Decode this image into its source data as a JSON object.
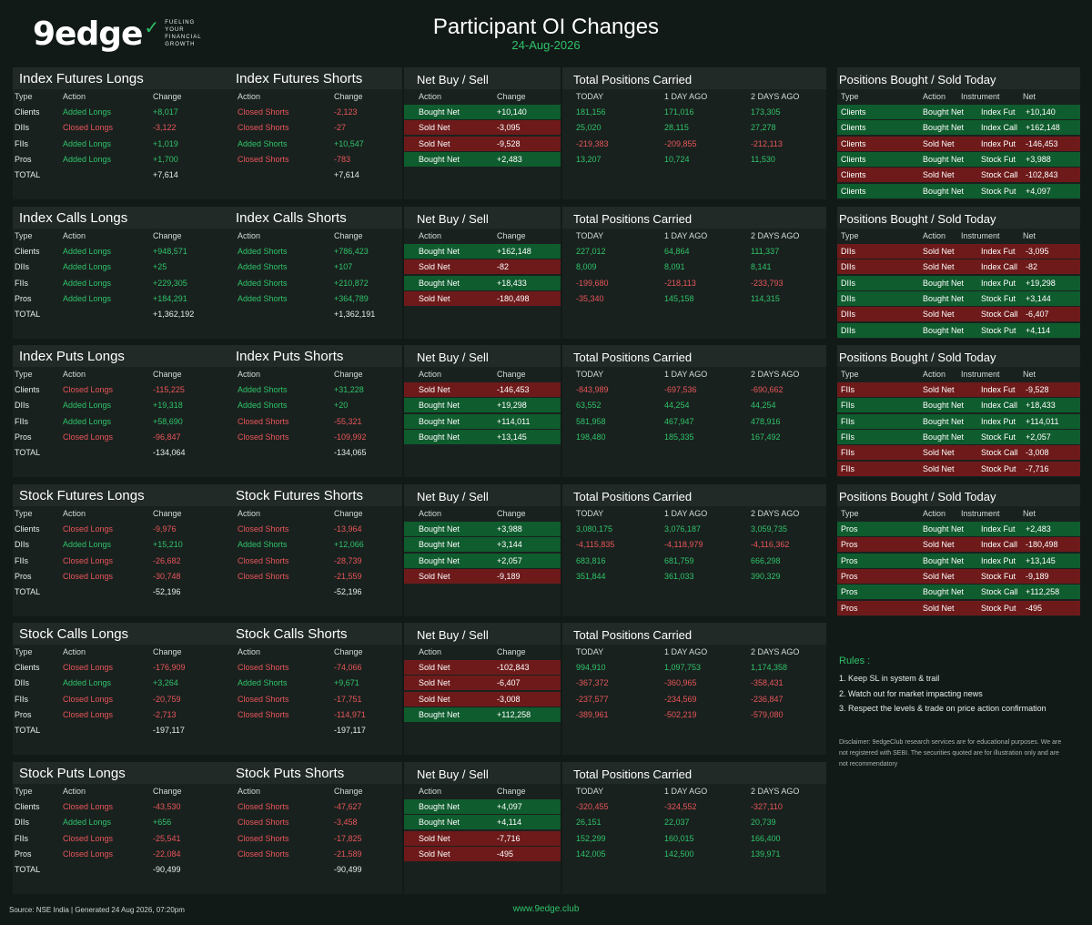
{
  "header": {
    "logo_text": "9edge",
    "tagline": [
      "FUELING",
      "YOUR",
      "FINANCIAL",
      "GROWTH"
    ],
    "title": "Participant OI Changes",
    "date": "24-Aug-2026"
  },
  "labels": {
    "type": "Type",
    "action": "Action",
    "change": "Change",
    "net_title": "Net Buy / Sell",
    "pos_title": "Total Positions Carried",
    "today": "TODAY",
    "day1": "1 DAY AGO",
    "day2": "2 DAYS AGO",
    "total": "TOTAL",
    "bs_title": "Positions Bought / Sold Today",
    "instrument": "Instrument",
    "net": "Net"
  },
  "colors": {
    "bg": "#121a17",
    "green": "#2fc26a",
    "red": "#e8555a",
    "buy_bg": "#0f5c2e",
    "sell_bg": "#6e1a1a"
  },
  "sections": [
    {
      "longs_title": "Index Futures Longs",
      "shorts_title": "Index Futures Shorts",
      "rows": [
        {
          "type": "Clients",
          "l_action": "Added Longs",
          "l_change": "+8,017",
          "s_action": "Closed Shorts",
          "s_change": "-2,123",
          "net_action": "Bought Net",
          "net_change": "+10,140",
          "today": "181,156",
          "d1": "171,016",
          "d2": "173,305"
        },
        {
          "type": "DIIs",
          "l_action": "Closed Longs",
          "l_change": "-3,122",
          "s_action": "Closed Shorts",
          "s_change": "-27",
          "net_action": "Sold Net",
          "net_change": "-3,095",
          "today": "25,020",
          "d1": "28,115",
          "d2": "27,278"
        },
        {
          "type": "FIIs",
          "l_action": "Added Longs",
          "l_change": "+1,019",
          "s_action": "Added Shorts",
          "s_change": "+10,547",
          "net_action": "Sold Net",
          "net_change": "-9,528",
          "today": "-219,383",
          "d1": "-209,855",
          "d2": "-212,113"
        },
        {
          "type": "Pros",
          "l_action": "Added Longs",
          "l_change": "+1,700",
          "s_action": "Closed Shorts",
          "s_change": "-783",
          "net_action": "Bought Net",
          "net_change": "+2,483",
          "today": "13,207",
          "d1": "10,724",
          "d2": "11,530"
        }
      ],
      "l_total": "+7,614",
      "s_total": "+7,614"
    },
    {
      "longs_title": "Index Calls Longs",
      "shorts_title": "Index Calls Shorts",
      "rows": [
        {
          "type": "Clients",
          "l_action": "Added Longs",
          "l_change": "+948,571",
          "s_action": "Added Shorts",
          "s_change": "+786,423",
          "net_action": "Bought Net",
          "net_change": "+162,148",
          "today": "227,012",
          "d1": "64,864",
          "d2": "111,337"
        },
        {
          "type": "DIIs",
          "l_action": "Added Longs",
          "l_change": "+25",
          "s_action": "Added Shorts",
          "s_change": "+107",
          "net_action": "Sold Net",
          "net_change": "-82",
          "today": "8,009",
          "d1": "8,091",
          "d2": "8,141"
        },
        {
          "type": "FIIs",
          "l_action": "Added Longs",
          "l_change": "+229,305",
          "s_action": "Added Shorts",
          "s_change": "+210,872",
          "net_action": "Bought Net",
          "net_change": "+18,433",
          "today": "-199,680",
          "d1": "-218,113",
          "d2": "-233,793"
        },
        {
          "type": "Pros",
          "l_action": "Added Longs",
          "l_change": "+184,291",
          "s_action": "Added Shorts",
          "s_change": "+364,789",
          "net_action": "Sold Net",
          "net_change": "-180,498",
          "today": "-35,340",
          "d1": "145,158",
          "d2": "114,315"
        }
      ],
      "l_total": "+1,362,192",
      "s_total": "+1,362,191"
    },
    {
      "longs_title": "Index Puts Longs",
      "shorts_title": "Index Puts Shorts",
      "rows": [
        {
          "type": "Clients",
          "l_action": "Closed Longs",
          "l_change": "-115,225",
          "s_action": "Added Shorts",
          "s_change": "+31,228",
          "net_action": "Sold Net",
          "net_change": "-146,453",
          "today": "-843,989",
          "d1": "-697,536",
          "d2": "-690,662"
        },
        {
          "type": "DIIs",
          "l_action": "Added Longs",
          "l_change": "+19,318",
          "s_action": "Added Shorts",
          "s_change": "+20",
          "net_action": "Bought Net",
          "net_change": "+19,298",
          "today": "63,552",
          "d1": "44,254",
          "d2": "44,254"
        },
        {
          "type": "FIIs",
          "l_action": "Added Longs",
          "l_change": "+58,690",
          "s_action": "Closed Shorts",
          "s_change": "-55,321",
          "net_action": "Bought Net",
          "net_change": "+114,011",
          "today": "581,958",
          "d1": "467,947",
          "d2": "478,916"
        },
        {
          "type": "Pros",
          "l_action": "Closed Longs",
          "l_change": "-96,847",
          "s_action": "Closed Shorts",
          "s_change": "-109,992",
          "net_action": "Bought Net",
          "net_change": "+13,145",
          "today": "198,480",
          "d1": "185,335",
          "d2": "167,492"
        }
      ],
      "l_total": "-134,064",
      "s_total": "-134,065"
    },
    {
      "longs_title": "Stock Futures Longs",
      "shorts_title": "Stock Futures Shorts",
      "rows": [
        {
          "type": "Clients",
          "l_action": "Closed Longs",
          "l_change": "-9,976",
          "s_action": "Closed Shorts",
          "s_change": "-13,964",
          "net_action": "Bought Net",
          "net_change": "+3,988",
          "today": "3,080,175",
          "d1": "3,076,187",
          "d2": "3,059,735"
        },
        {
          "type": "DIIs",
          "l_action": "Added Longs",
          "l_change": "+15,210",
          "s_action": "Added Shorts",
          "s_change": "+12,066",
          "net_action": "Bought Net",
          "net_change": "+3,144",
          "today": "-4,115,835",
          "d1": "-4,118,979",
          "d2": "-4,116,362"
        },
        {
          "type": "FIIs",
          "l_action": "Closed Longs",
          "l_change": "-26,682",
          "s_action": "Closed Shorts",
          "s_change": "-28,739",
          "net_action": "Bought Net",
          "net_change": "+2,057",
          "today": "683,816",
          "d1": "681,759",
          "d2": "666,298"
        },
        {
          "type": "Pros",
          "l_action": "Closed Longs",
          "l_change": "-30,748",
          "s_action": "Closed Shorts",
          "s_change": "-21,559",
          "net_action": "Sold Net",
          "net_change": "-9,189",
          "today": "351,844",
          "d1": "361,033",
          "d2": "390,329"
        }
      ],
      "l_total": "-52,196",
      "s_total": "-52,196"
    },
    {
      "longs_title": "Stock Calls Longs",
      "shorts_title": "Stock Calls Shorts",
      "rows": [
        {
          "type": "Clients",
          "l_action": "Closed Longs",
          "l_change": "-176,909",
          "s_action": "Closed Shorts",
          "s_change": "-74,066",
          "net_action": "Sold Net",
          "net_change": "-102,843",
          "today": "994,910",
          "d1": "1,097,753",
          "d2": "1,174,358"
        },
        {
          "type": "DIIs",
          "l_action": "Added Longs",
          "l_change": "+3,264",
          "s_action": "Added Shorts",
          "s_change": "+9,671",
          "net_action": "Sold Net",
          "net_change": "-6,407",
          "today": "-367,372",
          "d1": "-360,965",
          "d2": "-358,431"
        },
        {
          "type": "FIIs",
          "l_action": "Closed Longs",
          "l_change": "-20,759",
          "s_action": "Closed Shorts",
          "s_change": "-17,751",
          "net_action": "Sold Net",
          "net_change": "-3,008",
          "today": "-237,577",
          "d1": "-234,569",
          "d2": "-236,847"
        },
        {
          "type": "Pros",
          "l_action": "Closed Longs",
          "l_change": "-2,713",
          "s_action": "Closed Shorts",
          "s_change": "-114,971",
          "net_action": "Bought Net",
          "net_change": "+112,258",
          "today": "-389,961",
          "d1": "-502,219",
          "d2": "-579,080"
        }
      ],
      "l_total": "-197,117",
      "s_total": "-197,117"
    },
    {
      "longs_title": "Stock Puts Longs",
      "shorts_title": "Stock Puts Shorts",
      "rows": [
        {
          "type": "Clients",
          "l_action": "Closed Longs",
          "l_change": "-43,530",
          "s_action": "Closed Shorts",
          "s_change": "-47,627",
          "net_action": "Bought Net",
          "net_change": "+4,097",
          "today": "-320,455",
          "d1": "-324,552",
          "d2": "-327,110"
        },
        {
          "type": "DIIs",
          "l_action": "Added Longs",
          "l_change": "+656",
          "s_action": "Closed Shorts",
          "s_change": "-3,458",
          "net_action": "Bought Net",
          "net_change": "+4,114",
          "today": "26,151",
          "d1": "22,037",
          "d2": "20,739"
        },
        {
          "type": "FIIs",
          "l_action": "Closed Longs",
          "l_change": "-25,541",
          "s_action": "Closed Shorts",
          "s_change": "-17,825",
          "net_action": "Sold Net",
          "net_change": "-7,716",
          "today": "152,299",
          "d1": "160,015",
          "d2": "166,400"
        },
        {
          "type": "Pros",
          "l_action": "Closed Longs",
          "l_change": "-22,084",
          "s_action": "Closed Shorts",
          "s_change": "-21,589",
          "net_action": "Sold Net",
          "net_change": "-495",
          "today": "142,005",
          "d1": "142,500",
          "d2": "139,971"
        }
      ],
      "l_total": "-90,499",
      "s_total": "-90,499"
    }
  ],
  "bought_sold": [
    {
      "rows": [
        {
          "type": "Clients",
          "action": "Bought Net",
          "instrument": "Index Fut",
          "net": "+10,140"
        },
        {
          "type": "Clients",
          "action": "Bought Net",
          "instrument": "Index Call",
          "net": "+162,148"
        },
        {
          "type": "Clients",
          "action": "Sold Net",
          "instrument": "Index Put",
          "net": "-146,453"
        },
        {
          "type": "Clients",
          "action": "Bought Net",
          "instrument": "Stock Fut",
          "net": "+3,988"
        },
        {
          "type": "Clients",
          "action": "Sold Net",
          "instrument": "Stock Call",
          "net": "-102,843"
        },
        {
          "type": "Clients",
          "action": "Bought Net",
          "instrument": "Stock Put",
          "net": "+4,097"
        }
      ]
    },
    {
      "rows": [
        {
          "type": "DIIs",
          "action": "Sold Net",
          "instrument": "Index Fut",
          "net": "-3,095"
        },
        {
          "type": "DIIs",
          "action": "Sold Net",
          "instrument": "Index Call",
          "net": "-82"
        },
        {
          "type": "DIIs",
          "action": "Bought Net",
          "instrument": "Index Put",
          "net": "+19,298"
        },
        {
          "type": "DIIs",
          "action": "Bought Net",
          "instrument": "Stock Fut",
          "net": "+3,144"
        },
        {
          "type": "DIIs",
          "action": "Sold Net",
          "instrument": "Stock Call",
          "net": "-6,407"
        },
        {
          "type": "DIIs",
          "action": "Bought Net",
          "instrument": "Stock Put",
          "net": "+4,114"
        }
      ]
    },
    {
      "rows": [
        {
          "type": "FIIs",
          "action": "Sold Net",
          "instrument": "Index Fut",
          "net": "-9,528"
        },
        {
          "type": "FIIs",
          "action": "Bought Net",
          "instrument": "Index Call",
          "net": "+18,433"
        },
        {
          "type": "FIIs",
          "action": "Bought Net",
          "instrument": "Index Put",
          "net": "+114,011"
        },
        {
          "type": "FIIs",
          "action": "Bought Net",
          "instrument": "Stock Fut",
          "net": "+2,057"
        },
        {
          "type": "FIIs",
          "action": "Sold Net",
          "instrument": "Stock Call",
          "net": "-3,008"
        },
        {
          "type": "FIIs",
          "action": "Sold Net",
          "instrument": "Stock Put",
          "net": "-7,716"
        }
      ]
    },
    {
      "rows": [
        {
          "type": "Pros",
          "action": "Bought Net",
          "instrument": "Index Fut",
          "net": "+2,483"
        },
        {
          "type": "Pros",
          "action": "Sold Net",
          "instrument": "Index Call",
          "net": "-180,498"
        },
        {
          "type": "Pros",
          "action": "Bought Net",
          "instrument": "Index Put",
          "net": "+13,145"
        },
        {
          "type": "Pros",
          "action": "Sold Net",
          "instrument": "Stock Fut",
          "net": "-9,189"
        },
        {
          "type": "Pros",
          "action": "Bought Net",
          "instrument": "Stock Call",
          "net": "+112,258"
        },
        {
          "type": "Pros",
          "action": "Sold Net",
          "instrument": "Stock Put",
          "net": "-495"
        }
      ]
    }
  ],
  "rules": {
    "title": "Rules :",
    "items": [
      "1. Keep SL in system & trail",
      "2. Watch out for market impacting news",
      "3. Respect the levels & trade on price action confirmation"
    ]
  },
  "disclaimer": "Disclaimer: 9edgeClub research services are for educational purposes. We are not registered with SEBI. The securities quoted are for illustration only and are not recommendatory",
  "footer": {
    "source": "Source: NSE India | Generated 24 Aug 2026, 07:20pm",
    "site": "www.9edge.club"
  }
}
